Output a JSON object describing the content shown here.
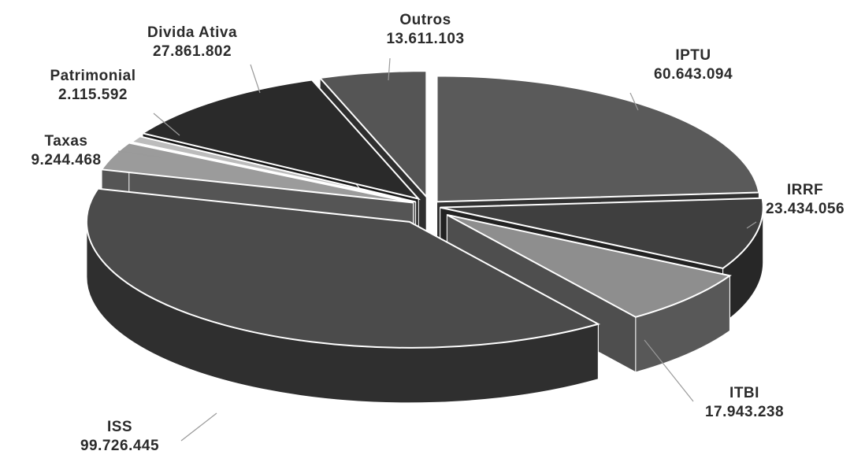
{
  "chart_data": {
    "type": "pie",
    "style": "3d-exploded",
    "slices": [
      {
        "label": "IPTU",
        "value_label": "60.643.094",
        "value": 60643094,
        "color": "#5a5a5a"
      },
      {
        "label": "IRRF",
        "value_label": "23.434.056",
        "value": 23434056,
        "color": "#3f3f3f"
      },
      {
        "label": "ITBI",
        "value_label": "17.943.238",
        "value": 17943238,
        "color": "#8e8e8e"
      },
      {
        "label": "ISS",
        "value_label": "99.726.445",
        "value": 99726445,
        "color": "#4b4b4b"
      },
      {
        "label": "Taxas",
        "value_label": "9.244.468",
        "value": 9244468,
        "color": "#9b9b9b"
      },
      {
        "label": "Patrimonial",
        "value_label": "2.115.592",
        "value": 2115592,
        "color": "#bcbcbc"
      },
      {
        "label": "Divida Ativa",
        "value_label": "27.861.802",
        "value": 27861802,
        "color": "#2a2a2a"
      },
      {
        "label": "Outros",
        "value_label": "13.611.103",
        "value": 13611103,
        "color": "#555555"
      }
    ],
    "legend": "none"
  }
}
